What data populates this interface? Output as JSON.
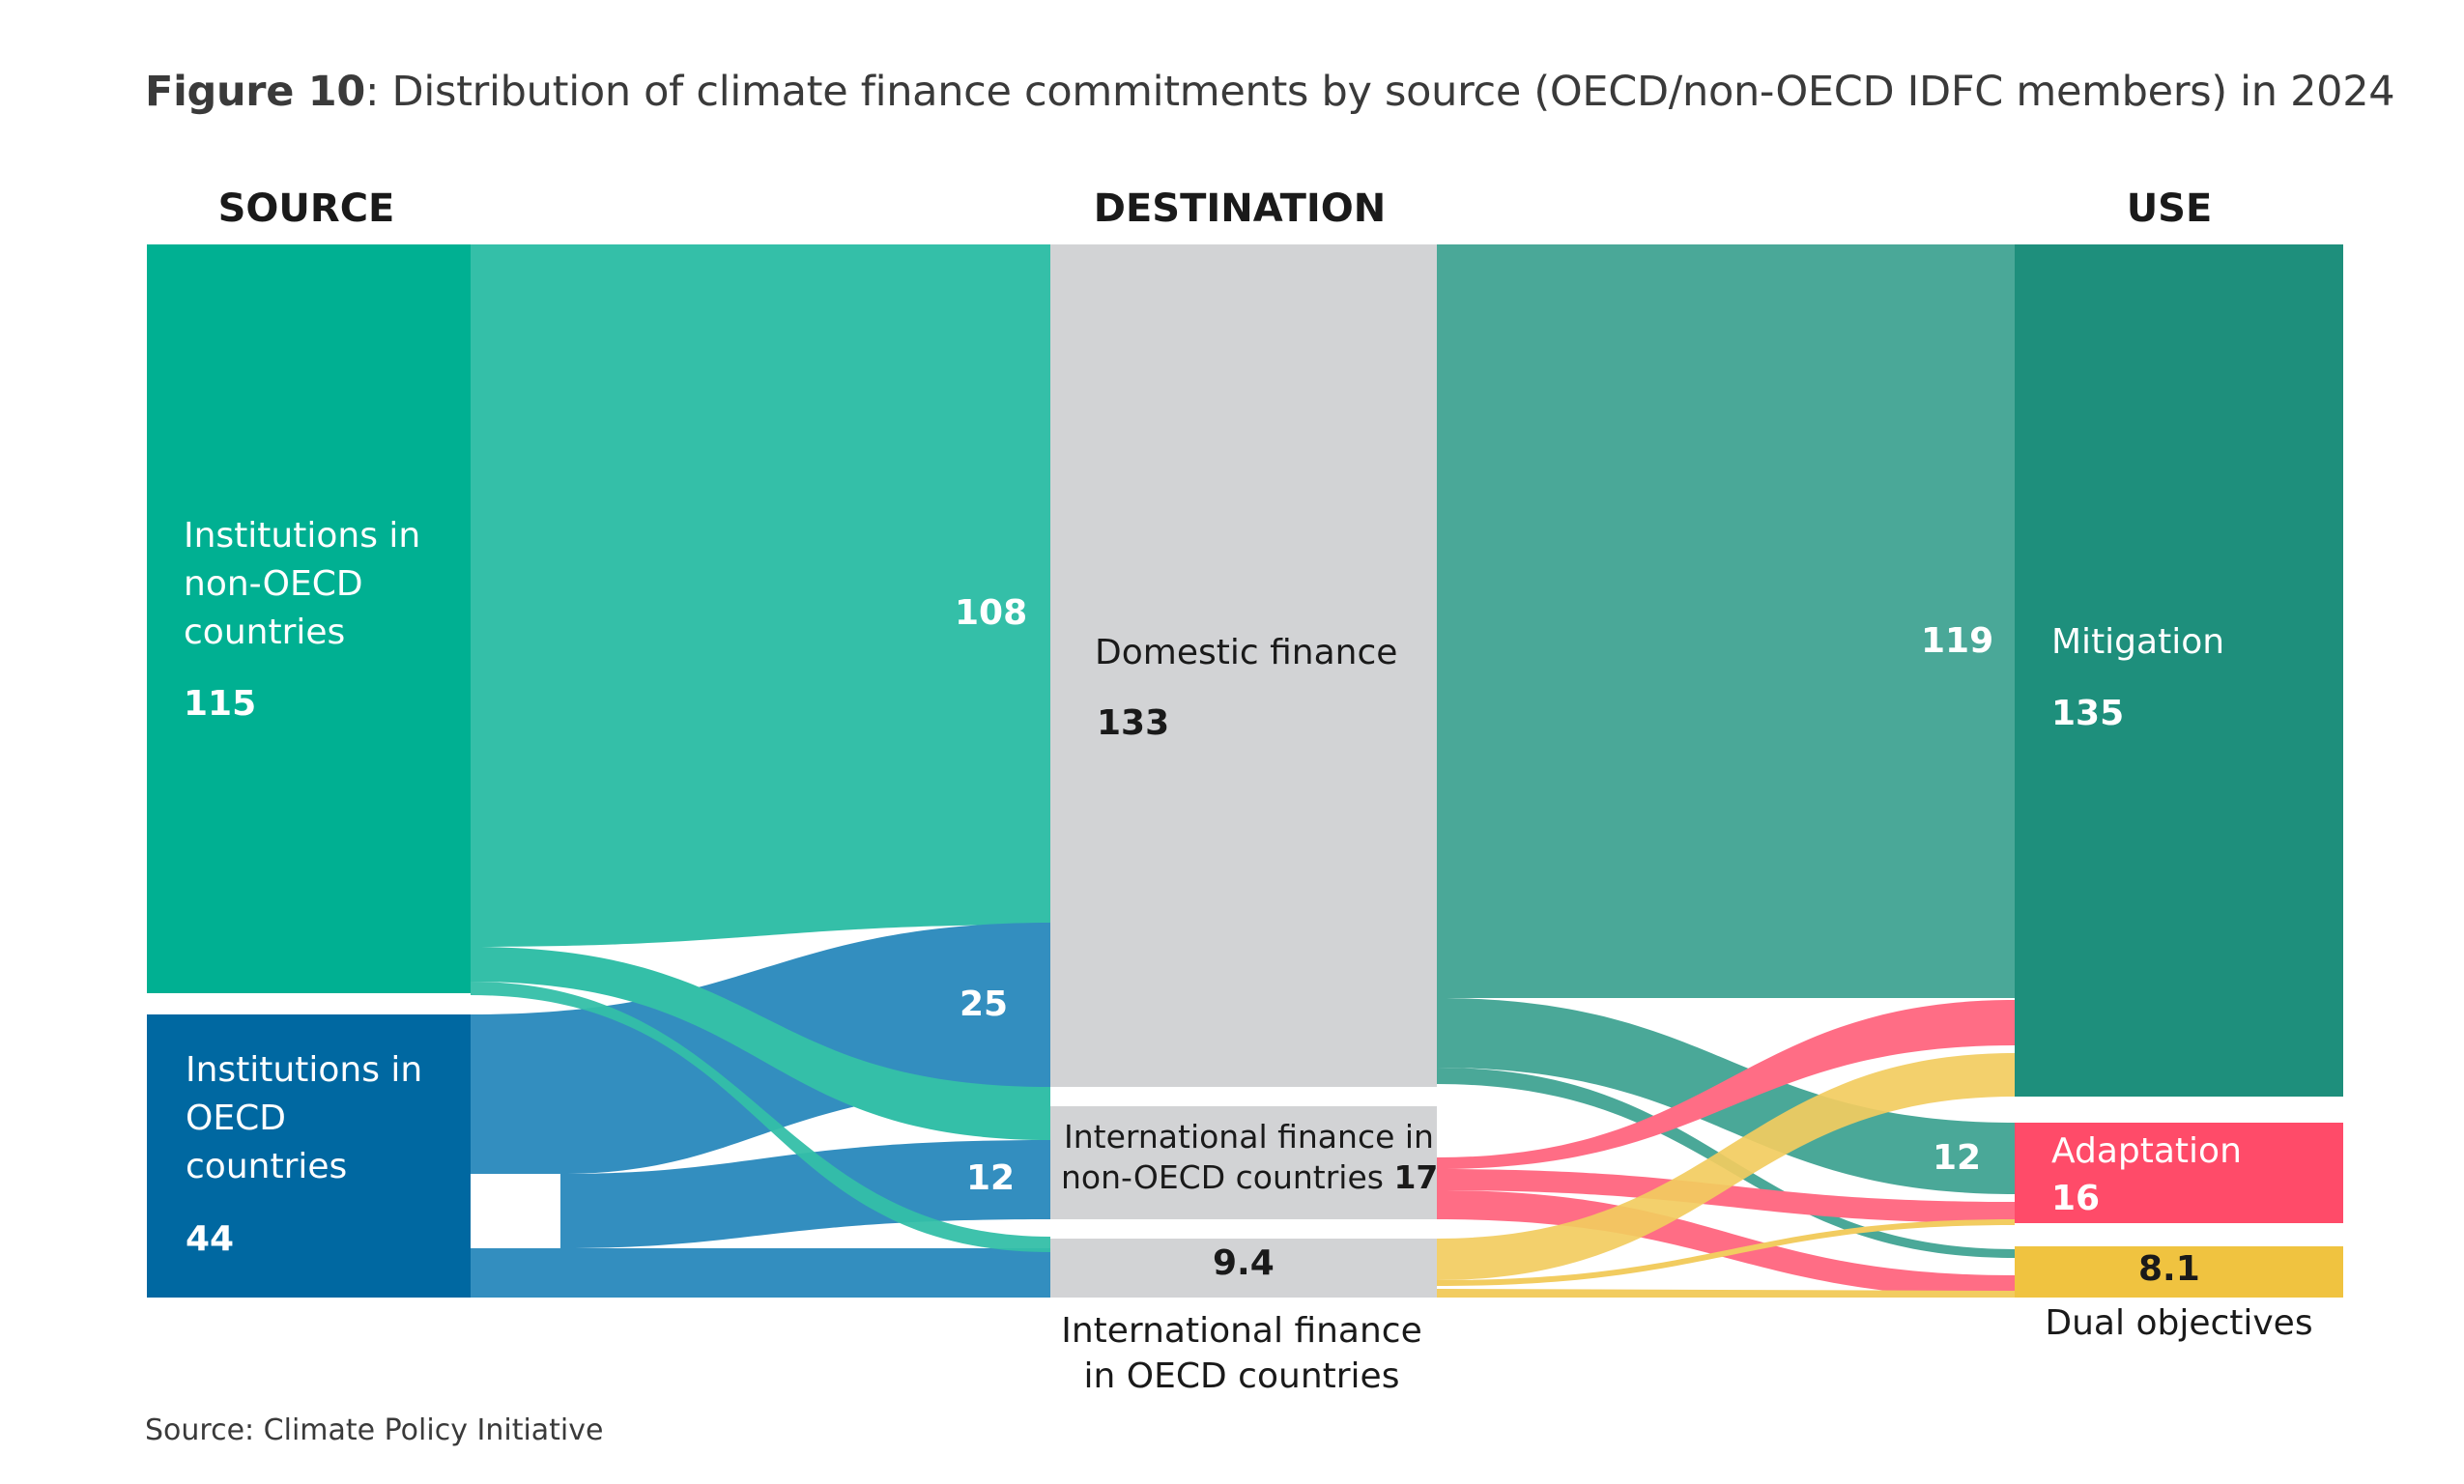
{
  "figure": {
    "label": "Figure 10",
    "caption": ": Distribution of climate finance commitments by source (OECD/non-OECD IDFC members) in 2024",
    "source_note": "Source: Climate Policy Initiative"
  },
  "columns": {
    "source": "SOURCE",
    "destination": "DESTINATION",
    "use": "USE"
  },
  "nodes": {
    "non_oecd": {
      "label": "Institutions in non-OECD countries",
      "line1": "Institutions in",
      "line2": "non-OECD",
      "line3": "countries",
      "value": "115",
      "color": "#00b092"
    },
    "oecd": {
      "label": "Institutions in OECD countries",
      "line1": "Institutions in",
      "line2": "OECD",
      "line3": "countries",
      "value": "44",
      "color": "#0068a1"
    },
    "domestic": {
      "label": "Domestic finance",
      "value": "133",
      "color": "#d2d3d5"
    },
    "intl_non_oecd": {
      "line1": "International finance in",
      "line2": "non-OECD countries",
      "value": "17",
      "color": "#d2d3d5"
    },
    "intl_oecd": {
      "line1": "International finance",
      "line2": "in OECD countries",
      "value": "9.4",
      "color": "#d2d3d5"
    },
    "mitigation": {
      "label": "Mitigation",
      "value": "135",
      "color": "#1e8f7c"
    },
    "adaptation": {
      "label": "Adaptation",
      "value": "16",
      "color": "#ff4b69"
    },
    "dual": {
      "label": "Dual objectives",
      "value": "8.1",
      "color": "#f0c340"
    }
  },
  "flows": [
    {
      "from": "Institutions in non-OECD countries",
      "to": "Domestic finance",
      "value": 108,
      "label": "108",
      "color": "#34bfa8"
    },
    {
      "from": "Institutions in OECD countries",
      "to": "Domestic finance",
      "value": 25,
      "label": "25",
      "color": "#338ebf"
    },
    {
      "from": "Institutions in OECD countries",
      "to": "International finance in non-OECD countries",
      "value": 12,
      "label": "12",
      "color": "#338ebf"
    },
    {
      "from": "Domestic finance",
      "to": "Mitigation",
      "value": 119,
      "label": "119",
      "color": "#4aa898"
    },
    {
      "from": "Domestic finance",
      "to": "Adaptation",
      "value": 12,
      "label": "12",
      "color": "#4aa898"
    }
  ]
}
